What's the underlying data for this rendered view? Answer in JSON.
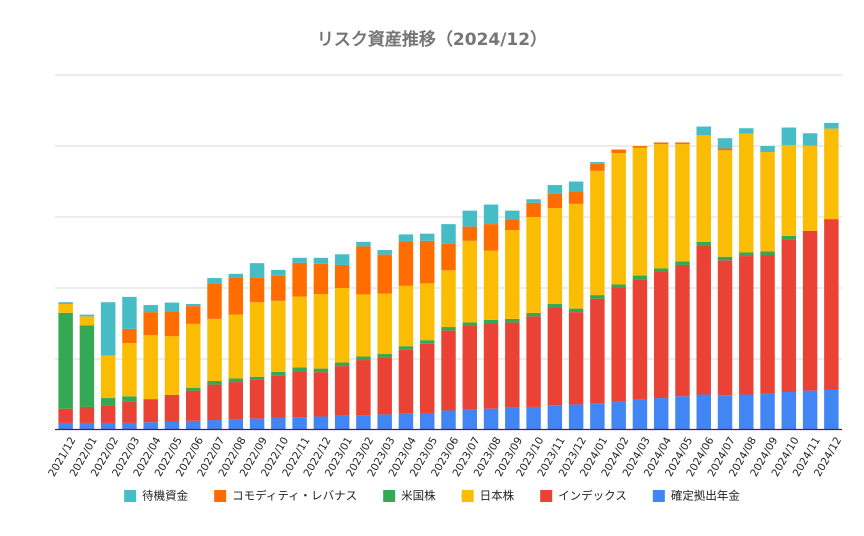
{
  "chart_data": {
    "type": "bar",
    "stacked": true,
    "title": "リスク資産推移（2024/12）",
    "xlabel": "",
    "ylabel": "",
    "ylim": [
      0,
      100
    ],
    "y_ticks_labeled": false,
    "gridlines": [
      0,
      20,
      40,
      60,
      80,
      100
    ],
    "grid": true,
    "legend_position": "bottom",
    "categories": [
      "2021/12",
      "2022/01",
      "2022/02",
      "2022/03",
      "2022/04",
      "2022/05",
      "2022/06",
      "2022/07",
      "2022/08",
      "2022/09",
      "2022/10",
      "2022/11",
      "2022/12",
      "2023/01",
      "2023/02",
      "2023/03",
      "2023/04",
      "2023/05",
      "2023/06",
      "2023/07",
      "2023/08",
      "2023/09",
      "2023/10",
      "2023/11",
      "2023/12",
      "2024/01",
      "2024/02",
      "2024/03",
      "2024/04",
      "2024/05",
      "2024/06",
      "2024/07",
      "2024/08",
      "2024/09",
      "2024/10",
      "2024/11",
      "2024/12"
    ],
    "series": [
      {
        "name": "確定拠出年金",
        "color": "#4285f4",
        "values": [
          2,
          2,
          2,
          2,
          2.2,
          2.4,
          2.6,
          2.8,
          3,
          3.2,
          3.4,
          3.6,
          3.8,
          4,
          4.2,
          4.4,
          4.6,
          4.8,
          5.5,
          5.8,
          6,
          6.3,
          6.5,
          7,
          7.2,
          7.5,
          8,
          8.5,
          9,
          9.5,
          10,
          9.8,
          10,
          10.3,
          10.7,
          11.1,
          11.4
        ]
      },
      {
        "name": "インデックス",
        "color": "#ea4335",
        "values": [
          4,
          4.5,
          5,
          6,
          6.5,
          7.5,
          8.5,
          10,
          10.5,
          11,
          12,
          13,
          12.5,
          14,
          15.5,
          16,
          18,
          19.5,
          22.5,
          23.5,
          24,
          24,
          25.5,
          27.5,
          26,
          29.5,
          32,
          34,
          35.5,
          37,
          42,
          38,
          39,
          39,
          43,
          45,
          48
        ]
      },
      {
        "name": "米国株",
        "color": "#34a853",
        "values": [
          27,
          23,
          2,
          1.5,
          0,
          0,
          0.8,
          1,
          1,
          0.8,
          1,
          1,
          1,
          1,
          1,
          1,
          1,
          1,
          1,
          1,
          1,
          1,
          1,
          1,
          1,
          1,
          1,
          1,
          1,
          1,
          1,
          1,
          1,
          1,
          1,
          0,
          0
        ]
      },
      {
        "name": "日本株",
        "color": "#fbbc04",
        "values": [
          2.5,
          2.5,
          12,
          15,
          18,
          16.5,
          18,
          17.5,
          18,
          21,
          20,
          20,
          21,
          21,
          17.5,
          17,
          17,
          16,
          16,
          23,
          19.5,
          25,
          27,
          27,
          29.5,
          35,
          37,
          36,
          35,
          33,
          30,
          30,
          33.5,
          28,
          25.5,
          24,
          25.5
        ]
      },
      {
        "name": "コモディティ・レバナス",
        "color": "#ff6d01",
        "values": [
          0,
          0,
          0,
          4,
          6.5,
          7,
          5,
          10,
          10.5,
          7,
          7,
          9.5,
          8.5,
          6.5,
          13.5,
          11,
          12.5,
          12,
          7.5,
          4,
          7.5,
          3,
          4,
          4,
          3.5,
          2,
          1,
          0.5,
          0.5,
          0.5,
          0,
          0.5,
          0,
          0,
          0,
          0,
          0
        ]
      },
      {
        "name": "待機資金",
        "color": "#46bdc6",
        "values": [
          0.5,
          0.5,
          15,
          9,
          2,
          2.5,
          0.6,
          1.5,
          1,
          4,
          1.7,
          1.4,
          1.7,
          3,
          1.3,
          1.3,
          2,
          2,
          5.5,
          4.5,
          5.5,
          2.5,
          1,
          2.5,
          2.8,
          0.5,
          0,
          0,
          0,
          0,
          2.5,
          2.9,
          1.5,
          1.7,
          5,
          3.5,
          1.6
        ]
      }
    ],
    "legend_order": [
      "待機資金",
      "コモディティ・レバナス",
      "米国株",
      "日本株",
      "インデックス",
      "確定拠出年金"
    ]
  }
}
